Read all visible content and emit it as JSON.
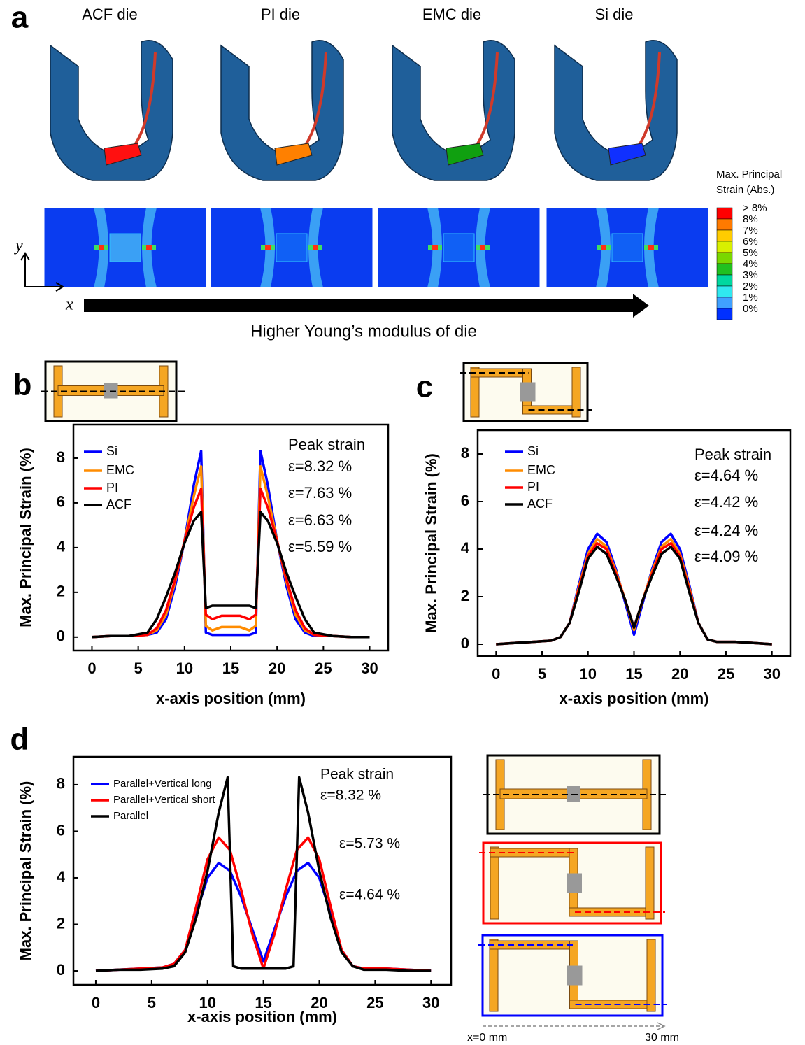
{
  "panel_labels": [
    "a",
    "b",
    "c",
    "d"
  ],
  "die_labels": [
    "ACF die",
    "PI die",
    "EMC die",
    "Si die"
  ],
  "axis_y": "y",
  "axis_x": "x",
  "arrow_text": "Higher Young’s modulus of die",
  "colorbar": {
    "title": [
      "Max. Principal",
      "Strain (Abs.)"
    ],
    "labels": [
      "> 8%",
      "8%",
      "7%",
      "6%",
      "5%",
      "4%",
      "3%",
      "2%",
      "1%",
      "0%"
    ],
    "colors": [
      "#ff0000",
      "#ff7a00",
      "#ffcc00",
      "#d8f000",
      "#7ad800",
      "#20c020",
      "#00d8a0",
      "#30e8f0",
      "#40a0ff",
      "#0030ff"
    ]
  },
  "scale_labels": [
    "x=0 mm",
    "30 mm"
  ],
  "chart_data": [
    {
      "type": "line",
      "x_label": "x-axis position (mm)",
      "y_label": "Max. Principal Strain (%)",
      "xlim": [
        -2,
        32
      ],
      "ylim": [
        -0.6,
        9.5
      ],
      "xticks": [
        0,
        5,
        10,
        15,
        20,
        25,
        30
      ],
      "yticks": [
        0,
        2,
        4,
        6,
        8
      ],
      "x": [
        0,
        2,
        4,
        6,
        7,
        8,
        9,
        10,
        11,
        11.8,
        12.3,
        13,
        14,
        15,
        16,
        17,
        17.7,
        18.2,
        19,
        20,
        21,
        22,
        23,
        24,
        26,
        28,
        30
      ],
      "series": [
        {
          "name": "Si",
          "color": "#0000ff",
          "values": [
            0,
            0.05,
            0.05,
            0.1,
            0.2,
            0.8,
            2.3,
            4.3,
            6.8,
            8.32,
            0.2,
            0.1,
            0.1,
            0.1,
            0.1,
            0.1,
            0.2,
            8.32,
            6.8,
            4.3,
            2.3,
            0.8,
            0.2,
            0.05,
            0.05,
            0,
            0
          ]
        },
        {
          "name": "EMC",
          "color": "#ff8c00",
          "values": [
            0,
            0.05,
            0.05,
            0.1,
            0.3,
            1,
            2.5,
            4.3,
            6.3,
            7.63,
            0.5,
            0.3,
            0.45,
            0.45,
            0.45,
            0.3,
            0.5,
            7.63,
            6.3,
            4.3,
            2.5,
            1,
            0.3,
            0.1,
            0.05,
            0,
            0
          ]
        },
        {
          "name": "PI",
          "color": "#ff0000",
          "values": [
            0,
            0.05,
            0.05,
            0.1,
            0.4,
            1.2,
            2.6,
            4.3,
            5.8,
            6.63,
            1,
            0.8,
            0.95,
            0.95,
            0.95,
            0.8,
            1,
            6.63,
            5.8,
            4.3,
            2.6,
            1.2,
            0.4,
            0.1,
            0.05,
            0,
            0
          ]
        },
        {
          "name": "ACF",
          "color": "#000000",
          "values": [
            0,
            0.05,
            0.05,
            0.2,
            0.8,
            1.8,
            2.9,
            4.2,
            5.2,
            5.59,
            1.3,
            1.4,
            1.4,
            1.4,
            1.4,
            1.4,
            1.3,
            5.59,
            5.2,
            4.2,
            2.9,
            1.8,
            0.8,
            0.2,
            0.05,
            0,
            0
          ]
        }
      ],
      "annotations": [
        {
          "text": "Peak strain",
          "color": "#0000ff"
        },
        {
          "text": "ε=8.32 %",
          "color": "#0000ff"
        },
        {
          "text": "ε=7.63 %",
          "color": "#ff8c00"
        },
        {
          "text": "ε=6.63 %",
          "color": "#ff0000"
        },
        {
          "text": "ε=5.59 %",
          "color": "#000000"
        }
      ]
    },
    {
      "type": "line",
      "x_label": "x-axis position (mm)",
      "y_label": "Max. Principal Strain (%)",
      "xlim": [
        -2,
        32
      ],
      "ylim": [
        -0.5,
        9
      ],
      "xticks": [
        0,
        5,
        10,
        15,
        20,
        25,
        30
      ],
      "yticks": [
        0,
        2,
        4,
        6,
        8
      ],
      "x": [
        0,
        2,
        4,
        6,
        7,
        8,
        9,
        10,
        11,
        12,
        13,
        14,
        15,
        16,
        17,
        18,
        19,
        20,
        21,
        22,
        23,
        24,
        26,
        28,
        30
      ],
      "series": [
        {
          "name": "Si",
          "color": "#0000ff",
          "values": [
            0,
            0.05,
            0.1,
            0.15,
            0.3,
            0.9,
            2.5,
            4,
            4.64,
            4.3,
            3.2,
            1.8,
            0.4,
            1.8,
            3.2,
            4.3,
            4.64,
            4,
            2.5,
            0.9,
            0.2,
            0.1,
            0.1,
            0.05,
            0
          ]
        },
        {
          "name": "EMC",
          "color": "#ff8c00",
          "values": [
            0,
            0.05,
            0.1,
            0.15,
            0.3,
            0.9,
            2.4,
            3.8,
            4.42,
            4.1,
            3.1,
            1.9,
            0.6,
            1.9,
            3.1,
            4.1,
            4.42,
            3.8,
            2.4,
            0.9,
            0.2,
            0.1,
            0.1,
            0.05,
            0
          ]
        },
        {
          "name": "PI",
          "color": "#ff0000",
          "values": [
            0,
            0.05,
            0.1,
            0.15,
            0.3,
            0.9,
            2.3,
            3.7,
            4.24,
            4,
            3,
            1.9,
            0.7,
            1.9,
            3,
            4,
            4.24,
            3.7,
            2.3,
            0.9,
            0.2,
            0.1,
            0.1,
            0.05,
            0
          ]
        },
        {
          "name": "ACF",
          "color": "#000000",
          "values": [
            0,
            0.05,
            0.1,
            0.15,
            0.3,
            0.9,
            2.2,
            3.6,
            4.09,
            3.8,
            2.9,
            1.9,
            0.7,
            1.9,
            2.9,
            3.8,
            4.09,
            3.6,
            2.2,
            0.9,
            0.2,
            0.1,
            0.1,
            0.05,
            0
          ]
        }
      ],
      "annotations": [
        {
          "text": "Peak strain",
          "color": "#0000ff"
        },
        {
          "text": "ε=4.64 %",
          "color": "#0000ff"
        },
        {
          "text": "ε=4.42 %",
          "color": "#ff8c00"
        },
        {
          "text": "ε=4.24 %",
          "color": "#ff0000"
        },
        {
          "text": "ε=4.09 %",
          "color": "#000000"
        }
      ]
    },
    {
      "type": "line",
      "x_label": "x-axis position (mm)",
      "y_label": "Max. Principal Strain (%)",
      "xlim": [
        -2,
        31.8
      ],
      "ylim": [
        -0.6,
        9.2
      ],
      "xticks": [
        0,
        5,
        10,
        15,
        20,
        25,
        30
      ],
      "yticks": [
        0,
        2,
        4,
        6,
        8
      ],
      "series": [
        {
          "name": "Parallel+Vertical long",
          "color": "#0000ff",
          "x": [
            0,
            2,
            4,
            6,
            7,
            8,
            9,
            10,
            11,
            12,
            13,
            14,
            15,
            16,
            17,
            18,
            19,
            20,
            21,
            22,
            23,
            24,
            26,
            28,
            30
          ],
          "values": [
            0,
            0.05,
            0.1,
            0.15,
            0.3,
            0.9,
            2.5,
            4,
            4.64,
            4.3,
            3.2,
            1.8,
            0.4,
            1.8,
            3.2,
            4.3,
            4.64,
            4,
            2.5,
            0.9,
            0.2,
            0.1,
            0.1,
            0.05,
            0
          ]
        },
        {
          "name": "Parallel+Vertical short",
          "color": "#ff0000",
          "x": [
            0,
            2,
            4,
            6,
            7,
            8,
            9,
            10,
            11,
            12,
            13,
            14,
            15,
            16,
            17,
            18,
            19,
            20,
            21,
            22,
            23,
            24,
            26,
            28,
            30
          ],
          "values": [
            0,
            0.05,
            0.1,
            0.15,
            0.3,
            0.9,
            2.8,
            4.8,
            5.73,
            5.2,
            3.5,
            1.6,
            0.1,
            1.6,
            3.5,
            5.2,
            5.73,
            4.8,
            2.8,
            0.9,
            0.2,
            0.1,
            0.1,
            0.05,
            0
          ]
        },
        {
          "name": "Parallel",
          "color": "#000000",
          "x": [
            0,
            2,
            4,
            6,
            7,
            8,
            9,
            10,
            11,
            11.8,
            12.3,
            13,
            14,
            15,
            16,
            17,
            17.7,
            18.2,
            19,
            20,
            21,
            22,
            23,
            24,
            26,
            28,
            30
          ],
          "values": [
            0,
            0.05,
            0.05,
            0.1,
            0.2,
            0.8,
            2.3,
            4.3,
            6.8,
            8.32,
            0.2,
            0.1,
            0.1,
            0.1,
            0.1,
            0.1,
            0.2,
            8.32,
            6.8,
            4.3,
            2.3,
            0.8,
            0.2,
            0.05,
            0.05,
            0,
            0
          ]
        }
      ],
      "annotations": [
        {
          "text": "Peak strain",
          "color": "#000000"
        },
        {
          "text": "ε=8.32 %",
          "color": "#000000"
        },
        {
          "text": "ε=5.73 %",
          "color": "#ff0000"
        },
        {
          "text": "ε=4.64 %",
          "color": "#0000ff"
        }
      ]
    }
  ]
}
